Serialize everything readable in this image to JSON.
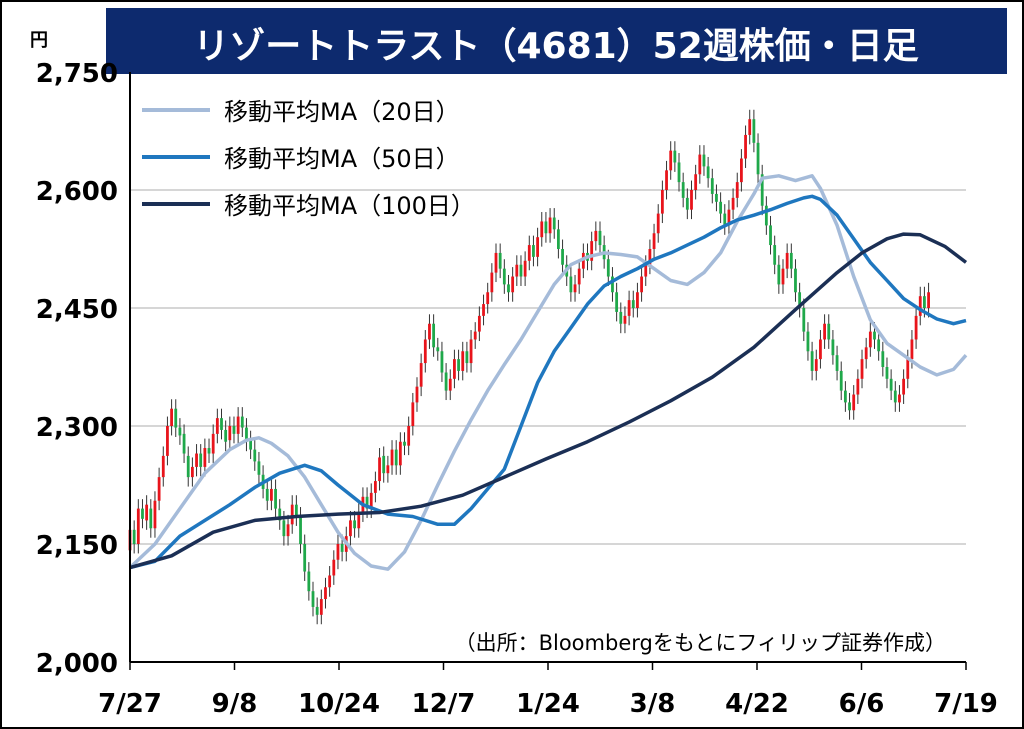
{
  "chart_data": {
    "type": "candlestick",
    "title": "リゾートトラスト（4681）52週株価・日足",
    "y_unit_label": "円",
    "y_ticks": [
      "2,000",
      "2,150",
      "2,300",
      "2,450",
      "2,600",
      "2,750"
    ],
    "ylim": [
      2000,
      2750
    ],
    "x_ticks": [
      "7/27",
      "9/8",
      "10/24",
      "12/7",
      "1/24",
      "3/8",
      "4/22",
      "6/6",
      "7/19"
    ],
    "grid": true,
    "legend_position": "top-left",
    "source_note": "（出所：Bloombergをもとにフィリップ証券作成）",
    "colors": {
      "title_bg": "#0d2a6e",
      "up": "#e8141b",
      "down": "#1fa84a",
      "ma20": "#a5bbd9",
      "ma50": "#1f77bf",
      "ma100": "#1b2f55",
      "grid": "#c8c8c8"
    },
    "series": [
      {
        "name": "移動平均MA（20日）",
        "key": "ma20",
        "points": [
          [
            0,
            2120
          ],
          [
            6,
            2150
          ],
          [
            12,
            2195
          ],
          [
            18,
            2240
          ],
          [
            24,
            2270
          ],
          [
            28,
            2282
          ],
          [
            31,
            2285
          ],
          [
            34,
            2278
          ],
          [
            38,
            2262
          ],
          [
            42,
            2235
          ],
          [
            46,
            2200
          ],
          [
            50,
            2165
          ],
          [
            54,
            2138
          ],
          [
            58,
            2122
          ],
          [
            62,
            2118
          ],
          [
            66,
            2140
          ],
          [
            70,
            2180
          ],
          [
            74,
            2225
          ],
          [
            78,
            2268
          ],
          [
            82,
            2308
          ],
          [
            86,
            2345
          ],
          [
            90,
            2378
          ],
          [
            94,
            2410
          ],
          [
            98,
            2445
          ],
          [
            102,
            2480
          ],
          [
            106,
            2505
          ],
          [
            110,
            2515
          ],
          [
            114,
            2520
          ],
          [
            118,
            2518
          ],
          [
            122,
            2515
          ],
          [
            126,
            2500
          ],
          [
            130,
            2485
          ],
          [
            134,
            2480
          ],
          [
            138,
            2495
          ],
          [
            142,
            2520
          ],
          [
            146,
            2560
          ],
          [
            150,
            2595
          ],
          [
            152,
            2615
          ],
          [
            156,
            2618
          ],
          [
            160,
            2612
          ],
          [
            164,
            2618
          ],
          [
            166,
            2602
          ],
          [
            170,
            2555
          ],
          [
            174,
            2490
          ],
          [
            178,
            2435
          ],
          [
            182,
            2405
          ],
          [
            186,
            2390
          ],
          [
            190,
            2375
          ],
          [
            194,
            2365
          ],
          [
            198,
            2372
          ],
          [
            201,
            2390
          ]
        ]
      },
      {
        "name": "移動平均MA（50日）",
        "key": "ma50",
        "points": [
          [
            0,
            2120
          ],
          [
            6,
            2128
          ],
          [
            12,
            2160
          ],
          [
            18,
            2180
          ],
          [
            24,
            2200
          ],
          [
            30,
            2222
          ],
          [
            36,
            2240
          ],
          [
            42,
            2250
          ],
          [
            46,
            2243
          ],
          [
            50,
            2225
          ],
          [
            56,
            2200
          ],
          [
            62,
            2188
          ],
          [
            68,
            2185
          ],
          [
            74,
            2175
          ],
          [
            78,
            2175
          ],
          [
            82,
            2195
          ],
          [
            86,
            2220
          ],
          [
            90,
            2245
          ],
          [
            94,
            2300
          ],
          [
            98,
            2355
          ],
          [
            102,
            2395
          ],
          [
            106,
            2425
          ],
          [
            110,
            2455
          ],
          [
            114,
            2478
          ],
          [
            118,
            2490
          ],
          [
            122,
            2500
          ],
          [
            126,
            2512
          ],
          [
            130,
            2520
          ],
          [
            134,
            2530
          ],
          [
            138,
            2540
          ],
          [
            142,
            2552
          ],
          [
            146,
            2562
          ],
          [
            150,
            2568
          ],
          [
            154,
            2575
          ],
          [
            158,
            2583
          ],
          [
            162,
            2590
          ],
          [
            164,
            2592
          ],
          [
            166,
            2588
          ],
          [
            170,
            2568
          ],
          [
            174,
            2538
          ],
          [
            178,
            2508
          ],
          [
            182,
            2485
          ],
          [
            186,
            2462
          ],
          [
            190,
            2448
          ],
          [
            194,
            2436
          ],
          [
            198,
            2430
          ],
          [
            201,
            2434
          ]
        ]
      },
      {
        "name": "移動平均MA（100日）",
        "key": "ma100",
        "points": [
          [
            0,
            2120
          ],
          [
            10,
            2135
          ],
          [
            20,
            2165
          ],
          [
            30,
            2180
          ],
          [
            40,
            2185
          ],
          [
            50,
            2188
          ],
          [
            60,
            2190
          ],
          [
            70,
            2198
          ],
          [
            80,
            2212
          ],
          [
            90,
            2235
          ],
          [
            100,
            2258
          ],
          [
            110,
            2280
          ],
          [
            120,
            2305
          ],
          [
            130,
            2332
          ],
          [
            140,
            2362
          ],
          [
            150,
            2400
          ],
          [
            160,
            2448
          ],
          [
            170,
            2495
          ],
          [
            176,
            2520
          ],
          [
            182,
            2538
          ],
          [
            186,
            2544
          ],
          [
            190,
            2543
          ],
          [
            196,
            2528
          ],
          [
            201,
            2508
          ]
        ]
      }
    ],
    "candles": [
      [
        0,
        2142,
        2168
      ],
      [
        1,
        2168,
        2150
      ],
      [
        2,
        2150,
        2195
      ],
      [
        3,
        2195,
        2182
      ],
      [
        4,
        2180,
        2200
      ],
      [
        5,
        2195,
        2170
      ],
      [
        6,
        2170,
        2205
      ],
      [
        7,
        2205,
        2235
      ],
      [
        8,
        2235,
        2262
      ],
      [
        9,
        2262,
        2300
      ],
      [
        10,
        2300,
        2322
      ],
      [
        11,
        2322,
        2298
      ],
      [
        12,
        2298,
        2288
      ],
      [
        13,
        2290,
        2265
      ],
      [
        14,
        2262,
        2235
      ],
      [
        15,
        2235,
        2248
      ],
      [
        16,
        2248,
        2265
      ],
      [
        17,
        2265,
        2248
      ],
      [
        18,
        2248,
        2272
      ],
      [
        19,
        2272,
        2265
      ],
      [
        20,
        2265,
        2290
      ],
      [
        21,
        2290,
        2310
      ],
      [
        22,
        2310,
        2295
      ],
      [
        23,
        2295,
        2280
      ],
      [
        24,
        2282,
        2300
      ],
      [
        25,
        2300,
        2290
      ],
      [
        26,
        2290,
        2312
      ],
      [
        27,
        2312,
        2298
      ],
      [
        28,
        2298,
        2280
      ],
      [
        29,
        2282,
        2270
      ],
      [
        30,
        2270,
        2255
      ],
      [
        31,
        2255,
        2238
      ],
      [
        32,
        2238,
        2220
      ],
      [
        33,
        2220,
        2205
      ],
      [
        34,
        2205,
        2220
      ],
      [
        35,
        2220,
        2195
      ],
      [
        36,
        2195,
        2180
      ],
      [
        37,
        2180,
        2160
      ],
      [
        38,
        2160,
        2175
      ],
      [
        39,
        2175,
        2200
      ],
      [
        40,
        2200,
        2185
      ],
      [
        41,
        2185,
        2150
      ],
      [
        42,
        2150,
        2115
      ],
      [
        43,
        2115,
        2090
      ],
      [
        44,
        2090,
        2070
      ],
      [
        45,
        2070,
        2060
      ],
      [
        46,
        2060,
        2080
      ],
      [
        47,
        2080,
        2095
      ],
      [
        48,
        2095,
        2110
      ],
      [
        49,
        2110,
        2130
      ],
      [
        50,
        2130,
        2150
      ],
      [
        51,
        2150,
        2140
      ],
      [
        52,
        2140,
        2160
      ],
      [
        53,
        2160,
        2180
      ],
      [
        54,
        2180,
        2170
      ],
      [
        55,
        2170,
        2190
      ],
      [
        56,
        2190,
        2210
      ],
      [
        57,
        2210,
        2195
      ],
      [
        58,
        2195,
        2215
      ],
      [
        59,
        2215,
        2230
      ],
      [
        60,
        2230,
        2260
      ],
      [
        61,
        2262,
        2240
      ],
      [
        62,
        2240,
        2250
      ],
      [
        63,
        2250,
        2270
      ],
      [
        64,
        2270,
        2250
      ],
      [
        65,
        2250,
        2280
      ],
      [
        66,
        2280,
        2275
      ],
      [
        67,
        2275,
        2300
      ],
      [
        68,
        2300,
        2330
      ],
      [
        69,
        2330,
        2350
      ],
      [
        70,
        2350,
        2380
      ],
      [
        71,
        2380,
        2410
      ],
      [
        72,
        2410,
        2430
      ],
      [
        73,
        2430,
        2400
      ],
      [
        74,
        2400,
        2395
      ],
      [
        75,
        2395,
        2368
      ],
      [
        76,
        2368,
        2345
      ],
      [
        77,
        2345,
        2360
      ],
      [
        78,
        2360,
        2385
      ],
      [
        79,
        2385,
        2370
      ],
      [
        80,
        2370,
        2395
      ],
      [
        81,
        2395,
        2380
      ],
      [
        82,
        2380,
        2410
      ],
      [
        83,
        2410,
        2420
      ],
      [
        84,
        2420,
        2440
      ],
      [
        85,
        2440,
        2455
      ],
      [
        86,
        2455,
        2470
      ],
      [
        87,
        2470,
        2495
      ],
      [
        88,
        2495,
        2520
      ],
      [
        89,
        2520,
        2500
      ],
      [
        90,
        2500,
        2480
      ],
      [
        91,
        2480,
        2470
      ],
      [
        92,
        2470,
        2490
      ],
      [
        93,
        2490,
        2505
      ],
      [
        94,
        2505,
        2490
      ],
      [
        95,
        2490,
        2510
      ],
      [
        96,
        2510,
        2530
      ],
      [
        97,
        2530,
        2515
      ],
      [
        98,
        2515,
        2540
      ],
      [
        99,
        2540,
        2560
      ],
      [
        100,
        2560,
        2545
      ],
      [
        101,
        2545,
        2565
      ],
      [
        102,
        2565,
        2550
      ],
      [
        103,
        2550,
        2525
      ],
      [
        104,
        2525,
        2505
      ],
      [
        105,
        2505,
        2490
      ],
      [
        106,
        2490,
        2470
      ],
      [
        107,
        2470,
        2480
      ],
      [
        108,
        2480,
        2500
      ],
      [
        109,
        2500,
        2520
      ],
      [
        110,
        2520,
        2510
      ],
      [
        111,
        2510,
        2535
      ],
      [
        112,
        2535,
        2548
      ],
      [
        113,
        2548,
        2530
      ],
      [
        114,
        2530,
        2512
      ],
      [
        115,
        2512,
        2490
      ],
      [
        116,
        2490,
        2470
      ],
      [
        117,
        2470,
        2445
      ],
      [
        118,
        2445,
        2430
      ],
      [
        119,
        2430,
        2440
      ],
      [
        120,
        2440,
        2460
      ],
      [
        121,
        2460,
        2450
      ],
      [
        122,
        2450,
        2470
      ],
      [
        123,
        2470,
        2490
      ],
      [
        124,
        2490,
        2505
      ],
      [
        125,
        2505,
        2525
      ],
      [
        126,
        2525,
        2545
      ],
      [
        127,
        2545,
        2570
      ],
      [
        128,
        2570,
        2600
      ],
      [
        129,
        2600,
        2625
      ],
      [
        130,
        2625,
        2650
      ],
      [
        131,
        2650,
        2635
      ],
      [
        132,
        2635,
        2610
      ],
      [
        133,
        2610,
        2590
      ],
      [
        134,
        2590,
        2575
      ],
      [
        135,
        2575,
        2600
      ],
      [
        136,
        2600,
        2620
      ],
      [
        137,
        2620,
        2645
      ],
      [
        138,
        2645,
        2630
      ],
      [
        139,
        2630,
        2615
      ],
      [
        140,
        2615,
        2595
      ],
      [
        141,
        2595,
        2585
      ],
      [
        142,
        2585,
        2570
      ],
      [
        143,
        2570,
        2555
      ],
      [
        144,
        2555,
        2575
      ],
      [
        145,
        2575,
        2590
      ],
      [
        146,
        2590,
        2610
      ],
      [
        147,
        2610,
        2640
      ],
      [
        148,
        2640,
        2670
      ],
      [
        149,
        2670,
        2690
      ],
      [
        150,
        2690,
        2660
      ],
      [
        151,
        2660,
        2620
      ],
      [
        152,
        2620,
        2580
      ],
      [
        153,
        2580,
        2555
      ],
      [
        154,
        2555,
        2530
      ],
      [
        155,
        2530,
        2505
      ],
      [
        156,
        2505,
        2480
      ],
      [
        157,
        2480,
        2500
      ],
      [
        158,
        2500,
        2520
      ],
      [
        159,
        2520,
        2500
      ],
      [
        160,
        2500,
        2470
      ],
      [
        161,
        2470,
        2450
      ],
      [
        162,
        2450,
        2420
      ],
      [
        163,
        2420,
        2395
      ],
      [
        164,
        2395,
        2370
      ],
      [
        165,
        2370,
        2385
      ],
      [
        166,
        2385,
        2410
      ],
      [
        167,
        2410,
        2430
      ],
      [
        168,
        2430,
        2410
      ],
      [
        169,
        2410,
        2390
      ],
      [
        170,
        2390,
        2370
      ],
      [
        171,
        2370,
        2345
      ],
      [
        172,
        2345,
        2330
      ],
      [
        173,
        2330,
        2320
      ],
      [
        174,
        2320,
        2340
      ],
      [
        175,
        2340,
        2360
      ],
      [
        176,
        2360,
        2385
      ],
      [
        177,
        2385,
        2400
      ],
      [
        178,
        2400,
        2420
      ],
      [
        179,
        2420,
        2410
      ],
      [
        180,
        2410,
        2395
      ],
      [
        181,
        2395,
        2375
      ],
      [
        182,
        2375,
        2360
      ],
      [
        183,
        2360,
        2345
      ],
      [
        184,
        2345,
        2330
      ],
      [
        185,
        2330,
        2340
      ],
      [
        186,
        2340,
        2360
      ],
      [
        187,
        2360,
        2385
      ],
      [
        188,
        2385,
        2410
      ],
      [
        189,
        2410,
        2440
      ],
      [
        190,
        2440,
        2465
      ],
      [
        191,
        2465,
        2450
      ],
      [
        192,
        2450,
        2470
      ]
    ]
  }
}
